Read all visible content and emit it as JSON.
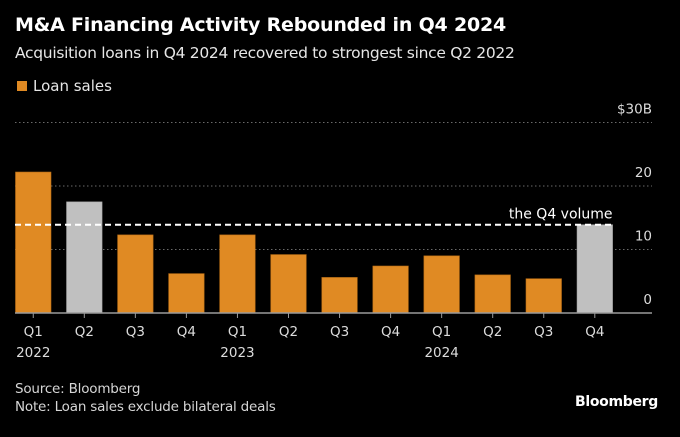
{
  "header": {
    "title": "M&A Financing Activity Rebounded in Q4 2024",
    "subtitle": "Acquisition loans in Q4 2024 recovered to strongest since Q2 2022"
  },
  "legend": [
    {
      "label": "Loan sales",
      "color": "#e08a23"
    }
  ],
  "footer": {
    "source": "Source: Bloomberg",
    "note": "Note: Loan sales exclude bilateral deals",
    "brand": "Bloomberg"
  },
  "chart_data": {
    "type": "bar",
    "title": "M&A Financing Activity Rebounded in Q4 2024",
    "subtitle": "Acquisition loans in Q4 2024 recovered to strongest since Q2 2022",
    "xlabel": "",
    "ylabel": "",
    "ylim": [
      0,
      30
    ],
    "yticks": [
      0,
      10,
      20,
      30
    ],
    "ytick_labels": [
      "0",
      "10",
      "20",
      "$30B"
    ],
    "grid": true,
    "legend_position": "top-left",
    "categories": [
      "Q1 2022",
      "Q2 2022",
      "Q3 2022",
      "Q4 2022",
      "Q1 2023",
      "Q2 2023",
      "Q3 2023",
      "Q4 2023",
      "Q1 2024",
      "Q2 2024",
      "Q3 2024",
      "Q4 2024"
    ],
    "xtick_quarters": [
      "Q1",
      "Q2",
      "Q3",
      "Q4",
      "Q1",
      "Q2",
      "Q3",
      "Q4",
      "Q1",
      "Q2",
      "Q3",
      "Q4"
    ],
    "xtick_years": [
      "2022",
      "",
      "",
      "",
      "2023",
      "",
      "",
      "",
      "2024",
      "",
      "",
      ""
    ],
    "series": [
      {
        "name": "Loan sales",
        "values": [
          22.2,
          17.5,
          12.3,
          6.2,
          12.3,
          9.2,
          5.6,
          7.4,
          9.0,
          6.0,
          5.4,
          13.9
        ],
        "colors": [
          "#e08a23",
          "#c0c0c0",
          "#e08a23",
          "#e08a23",
          "#e08a23",
          "#e08a23",
          "#e08a23",
          "#e08a23",
          "#e08a23",
          "#e08a23",
          "#e08a23",
          "#c0c0c0"
        ]
      }
    ],
    "annotations": [
      {
        "text": "the Q4 volume",
        "type": "reference-line",
        "value": 13.9
      }
    ]
  }
}
